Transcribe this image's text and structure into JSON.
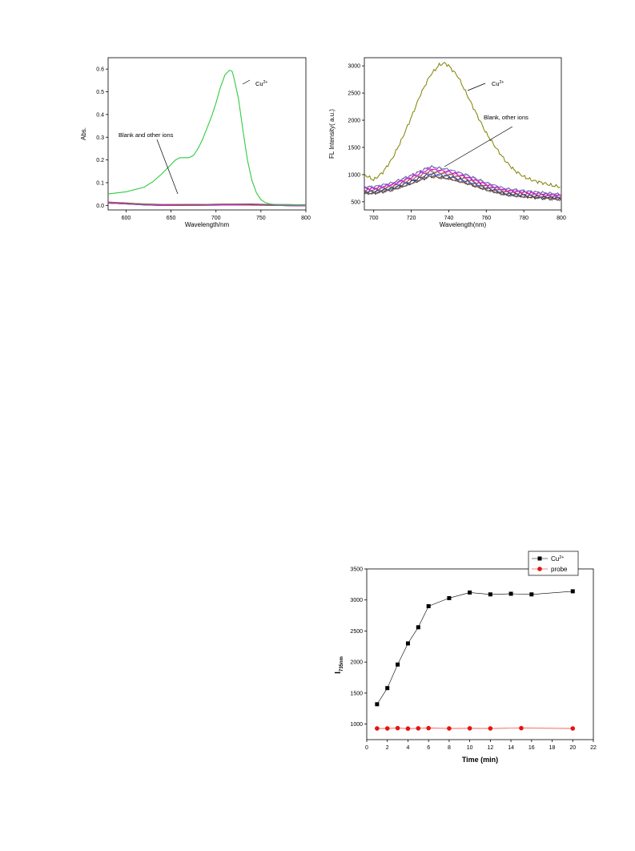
{
  "colors": {
    "abs_cu": "#2ecc40",
    "fl_cu": "#808000",
    "cu_series": "#000000",
    "probe_series": "#e8120c",
    "others": [
      "#000000",
      "#1a1aff",
      "#cc0000",
      "#8b008b",
      "#556b2f",
      "#4682b4",
      "#2f4f4f",
      "#808080",
      "#ff00ff",
      "#7b68ee",
      "#a0522d"
    ]
  },
  "chart_data": [
    {
      "type": "line",
      "xlabel": "Wavelength/nm",
      "ylabel": "Abs.",
      "xlim": [
        580,
        800
      ],
      "ylim": [
        -0.02,
        0.65
      ],
      "xticks": [
        "600",
        "650",
        "700",
        "750",
        "800"
      ],
      "yticks": [
        "0.0",
        "0.1",
        "0.2",
        "0.3",
        "0.4",
        "0.5",
        "0.6"
      ],
      "series": [
        {
          "name": "Cu2+",
          "x": [
            580,
            600,
            620,
            630,
            640,
            650,
            655,
            660,
            665,
            670,
            675,
            680,
            685,
            690,
            695,
            700,
            705,
            710,
            715,
            718,
            720,
            725,
            730,
            735,
            740,
            745,
            750,
            755,
            760,
            770,
            780,
            790,
            800
          ],
          "values": [
            0.05,
            0.06,
            0.08,
            0.105,
            0.14,
            0.18,
            0.2,
            0.21,
            0.21,
            0.21,
            0.22,
            0.25,
            0.29,
            0.34,
            0.39,
            0.45,
            0.52,
            0.575,
            0.595,
            0.59,
            0.56,
            0.47,
            0.33,
            0.2,
            0.11,
            0.055,
            0.025,
            0.012,
            0.006,
            0.003,
            0.002,
            0.001,
            0.0
          ]
        },
        {
          "name": "Blank and other ions",
          "x": [
            580,
            600,
            620,
            640,
            660,
            680,
            700,
            720,
            740,
            760,
            780,
            800
          ],
          "values": [
            0.012,
            0.008,
            0.004,
            0.002,
            0.002,
            0.002,
            0.003,
            0.004,
            0.003,
            0.002,
            0.001,
            0.0
          ]
        }
      ],
      "annotations": {
        "cu_label_prefix": "Cu",
        "cu_label_sup": "2+",
        "others_label": "Blank and other ions"
      }
    },
    {
      "type": "line",
      "xlabel": "Wavelength(nm)",
      "ylabel": "FL Intensity( a.u.)",
      "xlim": [
        695,
        800
      ],
      "ylim": [
        350,
        3150
      ],
      "xticks": [
        "700",
        "720",
        "740",
        "760",
        "780",
        "800"
      ],
      "yticks": [
        "500",
        "1000",
        "1500",
        "2000",
        "2500",
        "3000"
      ],
      "series": [
        {
          "name": "Cu2+",
          "x": [
            695,
            700,
            705,
            710,
            715,
            720,
            725,
            730,
            735,
            738,
            740,
            745,
            750,
            755,
            760,
            765,
            770,
            775,
            780,
            785,
            790,
            795,
            800
          ],
          "values": [
            1000,
            900,
            1050,
            1300,
            1650,
            2050,
            2480,
            2820,
            3020,
            3050,
            3000,
            2800,
            2450,
            2100,
            1760,
            1500,
            1260,
            1080,
            960,
            890,
            850,
            800,
            770
          ]
        },
        {
          "name": "Blank, other ions",
          "x": [
            695,
            700,
            710,
            720,
            730,
            740,
            750,
            760,
            770,
            780,
            790,
            800
          ],
          "values": [
            750,
            750,
            820,
            950,
            1100,
            1050,
            950,
            820,
            720,
            680,
            650,
            620
          ]
        }
      ],
      "annotations": {
        "cu_label_prefix": "Cu",
        "cu_label_sup": "2+",
        "others_label": "Blank,   other ions"
      }
    },
    {
      "type": "scatter",
      "xlabel": "Time (min)",
      "ylabel_main": "I",
      "ylabel_sub": "735nm",
      "xlim": [
        0,
        22
      ],
      "ylim": [
        750,
        3500
      ],
      "xticks": [
        "0",
        "2",
        "4",
        "6",
        "8",
        "10",
        "12",
        "14",
        "16",
        "18",
        "20",
        "22"
      ],
      "yticks": [
        "1000",
        "1500",
        "2000",
        "2500",
        "3000",
        "3500"
      ],
      "legend_position": "top-right",
      "series": [
        {
          "name": "Cu2+",
          "legend_prefix": "Cu",
          "legend_sup": "2+",
          "marker": "square",
          "x": [
            1,
            2,
            3,
            4,
            5,
            6,
            8,
            10,
            12,
            14,
            16,
            20
          ],
          "values": [
            1320,
            1580,
            1960,
            2300,
            2560,
            2900,
            3030,
            3120,
            3090,
            3100,
            3090,
            3140
          ]
        },
        {
          "name": "probe",
          "legend_prefix": "probe",
          "legend_sup": "",
          "marker": "circle",
          "x": [
            1,
            2,
            3,
            4,
            5,
            6,
            8,
            10,
            12,
            15,
            20
          ],
          "values": [
            930,
            930,
            935,
            928,
            932,
            935,
            930,
            932,
            930,
            935,
            930
          ]
        }
      ]
    }
  ]
}
